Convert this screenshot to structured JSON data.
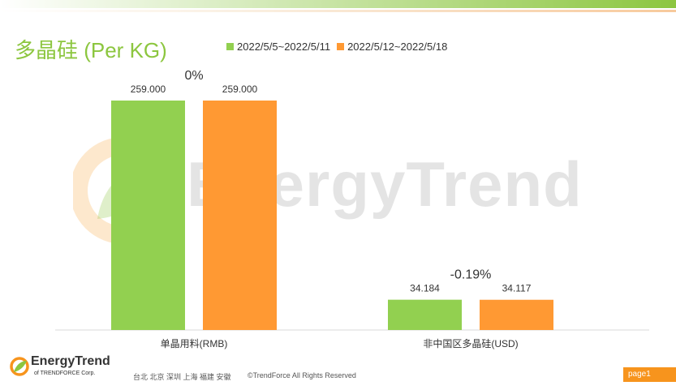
{
  "colors": {
    "accent_green": "#8cc63f",
    "accent_orange": "#f7941d",
    "series_1": "#92d050",
    "series_2": "#ff9933"
  },
  "header": {
    "title": "多晶硅 (Per KG)"
  },
  "chart_data": {
    "type": "bar",
    "title": "多晶硅 (Per KG)",
    "categories": [
      "单晶用料(RMB)",
      "非中国区多晶硅(USD)"
    ],
    "series": [
      {
        "name": "2022/5/5~2022/5/11",
        "values": [
          259.0,
          34.184
        ],
        "labels": [
          "259.000",
          "34.184"
        ]
      },
      {
        "name": "2022/5/12~2022/5/18",
        "values": [
          259.0,
          34.117
        ],
        "labels": [
          "259.000",
          "34.117"
        ]
      }
    ],
    "annotations": [
      "0%",
      "-0.19%"
    ],
    "legend_position": "top",
    "grid": false,
    "xlabel": "",
    "ylabel": ""
  },
  "watermark": {
    "text": "EnergyTrend",
    "icon": "energytrend-leaf-icon"
  },
  "footer": {
    "logo_name": "EnergyTrend",
    "logo_sub": "of TRENDFORCE Corp.",
    "offices": "台北  北京  深圳  上海  福建  安徽",
    "copyright": "©TrendForce All Rights Reserved",
    "page_label": "page1"
  }
}
